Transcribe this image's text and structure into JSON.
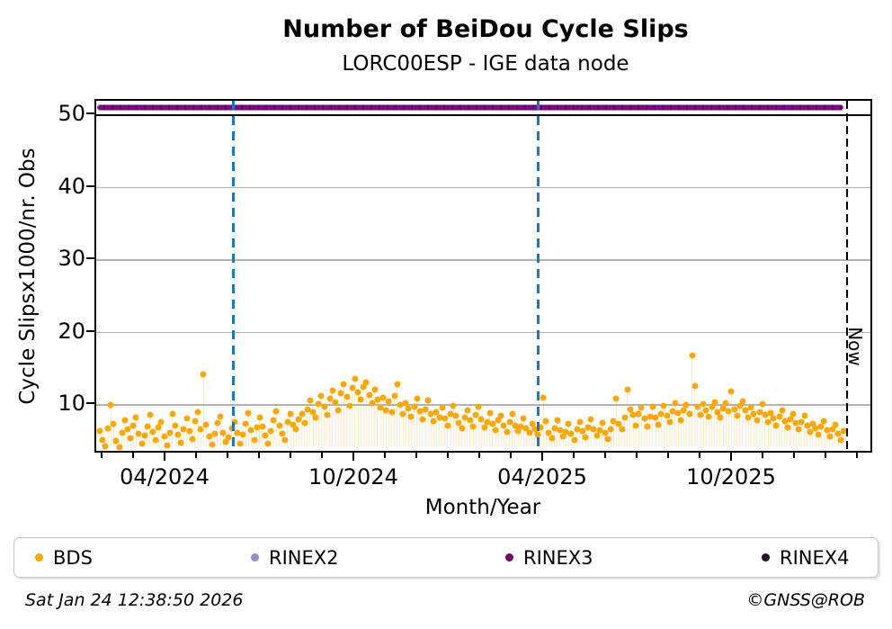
{
  "header": {
    "title": "Number of BeiDou Cycle Slips",
    "subtitle": "LORC00ESP - IGE data node"
  },
  "footer": {
    "timestamp": "Sat Jan 24 12:38:50 2026",
    "credit": "©GNSS@ROB"
  },
  "legend": [
    {
      "label": "BDS",
      "color": "#f5a800"
    },
    {
      "label": "RINEX2",
      "color": "#8e8ecb"
    },
    {
      "label": "RINEX3",
      "color": "#73086f"
    },
    {
      "label": "RINEX4",
      "color": "#260a2b"
    }
  ],
  "axes": {
    "xlabel": "Month/Year",
    "ylabel": "Cycle Slipsx1000/nr. Obs",
    "y_ticks": [
      10,
      20,
      30,
      40,
      50
    ],
    "x_major_labels": [
      "04/2024",
      "10/2024",
      "04/2025",
      "10/2025"
    ],
    "now_label": "Now"
  },
  "chart_data": {
    "type": "scatter",
    "title": "Number of BeiDou Cycle Slips",
    "subtitle": "LORC00ESP - IGE data node",
    "xlabel": "Month/Year",
    "ylabel": "Cycle Slipsx1000/nr. Obs",
    "x_unit": "months since 2024-01-24",
    "x_range": [
      "2024-01-24",
      "2026-02-15"
    ],
    "ylim": [
      3.2,
      52
    ],
    "grid": "horizontal",
    "legend_position": "bottom",
    "colors": {
      "bds": "#f9a70b",
      "rinex2": "#8e8ecb",
      "rinex3": "#7b0a80",
      "rinex4": "#260a2b",
      "event_line": "#1f77b4",
      "now_line": "#000000",
      "gridline": "#b3b3b3"
    },
    "series": [
      {
        "name": "BDS",
        "marker": "dot",
        "points": [
          [
            0.05,
            6.4
          ],
          [
            0.14,
            5.2
          ],
          [
            0.23,
            4.3
          ],
          [
            0.32,
            6.8
          ],
          [
            0.41,
            10.0
          ],
          [
            0.5,
            7.4
          ],
          [
            0.59,
            5.0
          ],
          [
            0.68,
            4.2
          ],
          [
            0.77,
            6.1
          ],
          [
            0.86,
            7.9
          ],
          [
            0.95,
            6.6
          ],
          [
            1.04,
            5.4
          ],
          [
            1.13,
            7.2
          ],
          [
            1.22,
            8.3
          ],
          [
            1.31,
            6.0
          ],
          [
            1.4,
            4.6
          ],
          [
            1.49,
            5.8
          ],
          [
            1.58,
            7.0
          ],
          [
            1.67,
            8.6
          ],
          [
            1.76,
            6.3
          ],
          [
            1.85,
            5.1
          ],
          [
            1.94,
            6.9
          ],
          [
            2.03,
            7.6
          ],
          [
            2.12,
            5.6
          ],
          [
            2.21,
            4.4
          ],
          [
            2.3,
            6.2
          ],
          [
            2.39,
            8.8
          ],
          [
            2.48,
            7.1
          ],
          [
            2.57,
            5.9
          ],
          [
            2.66,
            4.8
          ],
          [
            2.75,
            6.6
          ],
          [
            2.84,
            8.1
          ],
          [
            2.93,
            6.4
          ],
          [
            3.02,
            5.3
          ],
          [
            3.11,
            7.8
          ],
          [
            3.2,
            9.0
          ],
          [
            3.29,
            6.7
          ],
          [
            3.38,
            14.2
          ],
          [
            3.47,
            7.3
          ],
          [
            3.56,
            5.7
          ],
          [
            3.65,
            4.5
          ],
          [
            3.74,
            6.0
          ],
          [
            3.83,
            7.5
          ],
          [
            3.92,
            8.4
          ],
          [
            4.01,
            6.1
          ],
          [
            4.1,
            4.9
          ],
          [
            4.19,
            5.5
          ],
          [
            4.28,
            6.8
          ],
          [
            4.37,
            7.7
          ],
          [
            4.46,
            6.2
          ],
          [
            4.55,
            4.7
          ],
          [
            4.64,
            5.9
          ],
          [
            4.73,
            7.4
          ],
          [
            4.82,
            8.9
          ],
          [
            4.91,
            6.5
          ],
          [
            5.0,
            5.2
          ],
          [
            5.09,
            6.9
          ],
          [
            5.18,
            8.2
          ],
          [
            5.27,
            7.0
          ],
          [
            5.36,
            5.8
          ],
          [
            5.45,
            4.6
          ],
          [
            5.54,
            6.4
          ],
          [
            5.63,
            7.9
          ],
          [
            5.72,
            9.1
          ],
          [
            5.81,
            7.2
          ],
          [
            5.9,
            6.0
          ],
          [
            5.99,
            5.1
          ],
          [
            6.08,
            7.6
          ],
          [
            6.17,
            8.7
          ],
          [
            6.26,
            7.3
          ],
          [
            6.35,
            6.6
          ],
          [
            6.44,
            8.0
          ],
          [
            6.53,
            8.8
          ],
          [
            6.62,
            7.5
          ],
          [
            6.71,
            9.4
          ],
          [
            6.8,
            10.6
          ],
          [
            6.89,
            9.0
          ],
          [
            6.98,
            8.2
          ],
          [
            7.07,
            10.1
          ],
          [
            7.16,
            11.3
          ],
          [
            7.25,
            9.7
          ],
          [
            7.34,
            8.6
          ],
          [
            7.43,
            10.9
          ],
          [
            7.52,
            12.0
          ],
          [
            7.61,
            10.4
          ],
          [
            7.7,
            9.2
          ],
          [
            7.79,
            11.6
          ],
          [
            7.88,
            12.8
          ],
          [
            7.97,
            11.1
          ],
          [
            8.06,
            9.9
          ],
          [
            8.15,
            12.3
          ],
          [
            8.24,
            13.6
          ],
          [
            8.33,
            11.8
          ],
          [
            8.42,
            10.7
          ],
          [
            8.51,
            12.5
          ],
          [
            8.6,
            13.1
          ],
          [
            8.69,
            11.4
          ],
          [
            8.78,
            10.2
          ],
          [
            8.87,
            12.1
          ],
          [
            8.96,
            10.8
          ],
          [
            9.05,
            9.6
          ],
          [
            9.14,
            11.0
          ],
          [
            9.23,
            9.3
          ],
          [
            9.32,
            10.5
          ],
          [
            9.41,
            9.0
          ],
          [
            9.5,
            11.2
          ],
          [
            9.59,
            12.8
          ],
          [
            9.68,
            10.0
          ],
          [
            9.77,
            8.8
          ],
          [
            9.86,
            10.3
          ],
          [
            9.95,
            9.5
          ],
          [
            10.04,
            8.4
          ],
          [
            10.13,
            9.8
          ],
          [
            10.22,
            10.9
          ],
          [
            10.31,
            9.1
          ],
          [
            10.4,
            8.0
          ],
          [
            10.49,
            9.4
          ],
          [
            10.58,
            10.6
          ],
          [
            10.67,
            8.7
          ],
          [
            10.76,
            7.8
          ],
          [
            10.85,
            9.0
          ],
          [
            10.94,
            8.3
          ],
          [
            11.03,
            9.6
          ],
          [
            11.12,
            8.1
          ],
          [
            11.21,
            7.2
          ],
          [
            11.3,
            8.8
          ],
          [
            11.39,
            9.9
          ],
          [
            11.48,
            8.5
          ],
          [
            11.57,
            7.5
          ],
          [
            11.66,
            6.8
          ],
          [
            11.75,
            8.2
          ],
          [
            11.84,
            9.3
          ],
          [
            11.93,
            7.9
          ],
          [
            12.02,
            7.0
          ],
          [
            12.11,
            8.6
          ],
          [
            12.2,
            9.7
          ],
          [
            12.29,
            8.0
          ],
          [
            12.38,
            6.9
          ],
          [
            12.47,
            7.7
          ],
          [
            12.56,
            8.9
          ],
          [
            12.65,
            7.4
          ],
          [
            12.74,
            6.5
          ],
          [
            12.83,
            7.9
          ],
          [
            12.92,
            8.5
          ],
          [
            13.01,
            7.1
          ],
          [
            13.1,
            6.3
          ],
          [
            13.19,
            7.6
          ],
          [
            13.28,
            8.8
          ],
          [
            13.37,
            7.2
          ],
          [
            13.46,
            6.4
          ],
          [
            13.55,
            7.0
          ],
          [
            13.64,
            8.1
          ],
          [
            13.73,
            6.8
          ],
          [
            13.82,
            6.1
          ],
          [
            13.91,
            7.4
          ],
          [
            14.0,
            6.6
          ],
          [
            14.09,
            5.9
          ],
          [
            14.18,
            6.9
          ],
          [
            14.27,
            11.0
          ],
          [
            14.36,
            7.8
          ],
          [
            14.45,
            6.2
          ],
          [
            14.54,
            5.4
          ],
          [
            14.63,
            6.8
          ],
          [
            14.72,
            7.9
          ],
          [
            14.81,
            6.5
          ],
          [
            14.9,
            5.6
          ],
          [
            14.99,
            6.3
          ],
          [
            15.08,
            7.4
          ],
          [
            15.17,
            6.0
          ],
          [
            15.26,
            5.2
          ],
          [
            15.35,
            6.6
          ],
          [
            15.44,
            7.7
          ],
          [
            15.53,
            6.4
          ],
          [
            15.62,
            5.5
          ],
          [
            15.71,
            6.9
          ],
          [
            15.8,
            8.0
          ],
          [
            15.89,
            6.7
          ],
          [
            15.98,
            5.8
          ],
          [
            16.07,
            6.5
          ],
          [
            16.16,
            7.5
          ],
          [
            16.25,
            6.1
          ],
          [
            16.34,
            5.3
          ],
          [
            16.43,
            6.7
          ],
          [
            16.52,
            7.8
          ],
          [
            16.61,
            10.9
          ],
          [
            16.7,
            7.4
          ],
          [
            16.79,
            6.6
          ],
          [
            16.88,
            8.2
          ],
          [
            16.97,
            12.1
          ],
          [
            17.06,
            9.4
          ],
          [
            17.15,
            8.6
          ],
          [
            17.24,
            7.2
          ],
          [
            17.33,
            8.8
          ],
          [
            17.42,
            9.6
          ],
          [
            17.51,
            8.1
          ],
          [
            17.6,
            7.0
          ],
          [
            17.69,
            8.4
          ],
          [
            17.78,
            9.8
          ],
          [
            17.87,
            8.3
          ],
          [
            17.96,
            7.3
          ],
          [
            18.05,
            8.7
          ],
          [
            18.14,
            9.9
          ],
          [
            18.23,
            8.5
          ],
          [
            18.32,
            7.6
          ],
          [
            18.41,
            9.1
          ],
          [
            18.5,
            10.2
          ],
          [
            18.59,
            8.9
          ],
          [
            18.68,
            7.9
          ],
          [
            18.77,
            9.3
          ],
          [
            18.86,
            10.0
          ],
          [
            18.95,
            8.8
          ],
          [
            19.04,
            16.8
          ],
          [
            19.13,
            12.6
          ],
          [
            19.22,
            9.7
          ],
          [
            19.31,
            8.6
          ],
          [
            19.4,
            10.1
          ],
          [
            19.49,
            9.2
          ],
          [
            19.58,
            8.4
          ],
          [
            19.67,
            9.8
          ],
          [
            19.76,
            10.4
          ],
          [
            19.85,
            9.0
          ],
          [
            19.94,
            8.2
          ],
          [
            20.03,
            9.5
          ],
          [
            20.12,
            10.3
          ],
          [
            20.21,
            9.1
          ],
          [
            20.3,
            11.9
          ],
          [
            20.39,
            9.4
          ],
          [
            20.48,
            8.5
          ],
          [
            20.57,
            9.9
          ],
          [
            20.66,
            10.5
          ],
          [
            20.75,
            9.2
          ],
          [
            20.84,
            8.3
          ],
          [
            20.93,
            9.6
          ],
          [
            21.02,
            8.8
          ],
          [
            21.11,
            7.9
          ],
          [
            21.2,
            9.0
          ],
          [
            21.29,
            10.1
          ],
          [
            21.38,
            8.6
          ],
          [
            21.47,
            7.7
          ],
          [
            21.56,
            8.9
          ],
          [
            21.65,
            8.1
          ],
          [
            21.74,
            7.2
          ],
          [
            21.83,
            8.4
          ],
          [
            21.92,
            9.2
          ],
          [
            22.01,
            7.8
          ],
          [
            22.1,
            6.9
          ],
          [
            22.19,
            8.0
          ],
          [
            22.28,
            8.8
          ],
          [
            22.37,
            7.5
          ],
          [
            22.46,
            6.6
          ],
          [
            22.55,
            7.7
          ],
          [
            22.64,
            8.5
          ],
          [
            22.73,
            7.1
          ],
          [
            22.82,
            6.3
          ],
          [
            22.91,
            7.4
          ],
          [
            23.0,
            6.8
          ],
          [
            23.09,
            5.9
          ],
          [
            23.18,
            7.0
          ],
          [
            23.27,
            7.8
          ],
          [
            23.36,
            6.5
          ],
          [
            23.45,
            5.6
          ],
          [
            23.54,
            6.7
          ],
          [
            23.63,
            7.3
          ],
          [
            23.72,
            6.0
          ],
          [
            23.81,
            5.2
          ],
          [
            23.88,
            6.4
          ]
        ]
      },
      {
        "name": "RINEX2",
        "marker": "dot",
        "points": []
      },
      {
        "name": "RINEX3",
        "marker": "dashed-band",
        "constant_value": 51,
        "x_span_months": [
          0,
          23.85
        ]
      },
      {
        "name": "RINEX4",
        "marker": "dot",
        "points": []
      }
    ],
    "reference_lines": {
      "horizontal": [
        {
          "value": 50,
          "style": "solid",
          "color": "#000000"
        }
      ],
      "vertical": [
        {
          "months": 4.35,
          "approx_date": "2024-06-05",
          "style": "dashed",
          "color": "#1f77b4"
        },
        {
          "months": 14.12,
          "approx_date": "2025-03-27",
          "style": "dashed",
          "color": "#1f77b4"
        },
        {
          "months": 24.0,
          "approx_date": "2026-01-24",
          "label": "Now",
          "style": "dashed",
          "color": "#000000"
        }
      ]
    }
  }
}
